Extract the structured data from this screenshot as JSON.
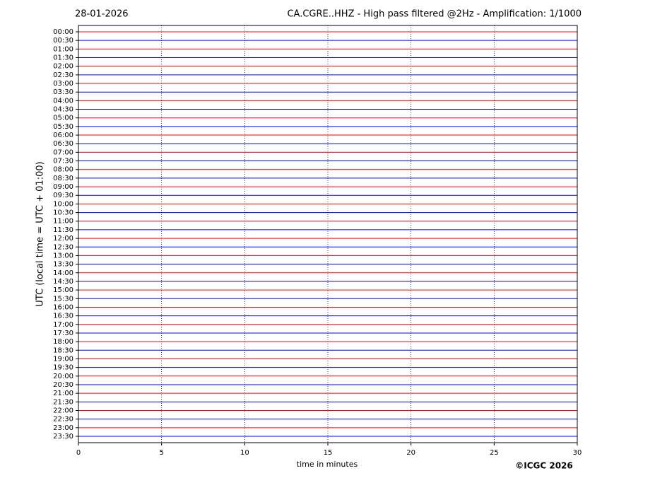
{
  "chart_data": {
    "type": "helicorder",
    "date": "28-01-2026",
    "title": "CA.CGRE..HHZ - High pass filtered @2Hz - Amplification: 1/1000",
    "ylabel": "UTC (local time = UTC + 01:00)",
    "xlabel": "time in minutes",
    "copyright": "©ICGC 2026",
    "categories": [
      "00:00",
      "00:30",
      "01:00",
      "01:30",
      "02:00",
      "02:30",
      "03:00",
      "03:30",
      "04:00",
      "04:30",
      "05:00",
      "05:30",
      "06:00",
      "06:30",
      "07:00",
      "07:30",
      "08:00",
      "08:30",
      "09:00",
      "09:30",
      "10:00",
      "10:30",
      "11:00",
      "11:30",
      "12:00",
      "12:30",
      "13:00",
      "13:30",
      "14:00",
      "14:30",
      "15:00",
      "15:30",
      "16:00",
      "16:30",
      "17:00",
      "17:30",
      "18:00",
      "18:30",
      "19:00",
      "19:30",
      "20:00",
      "20:30",
      "21:00",
      "21:30",
      "22:00",
      "22:30",
      "23:00",
      "23:30"
    ],
    "colors": [
      "#ff0000",
      "#0000ff"
    ],
    "xlim": [
      0,
      30
    ],
    "xticks": [
      0,
      5,
      10,
      15,
      20,
      25,
      30
    ],
    "grid": true
  }
}
